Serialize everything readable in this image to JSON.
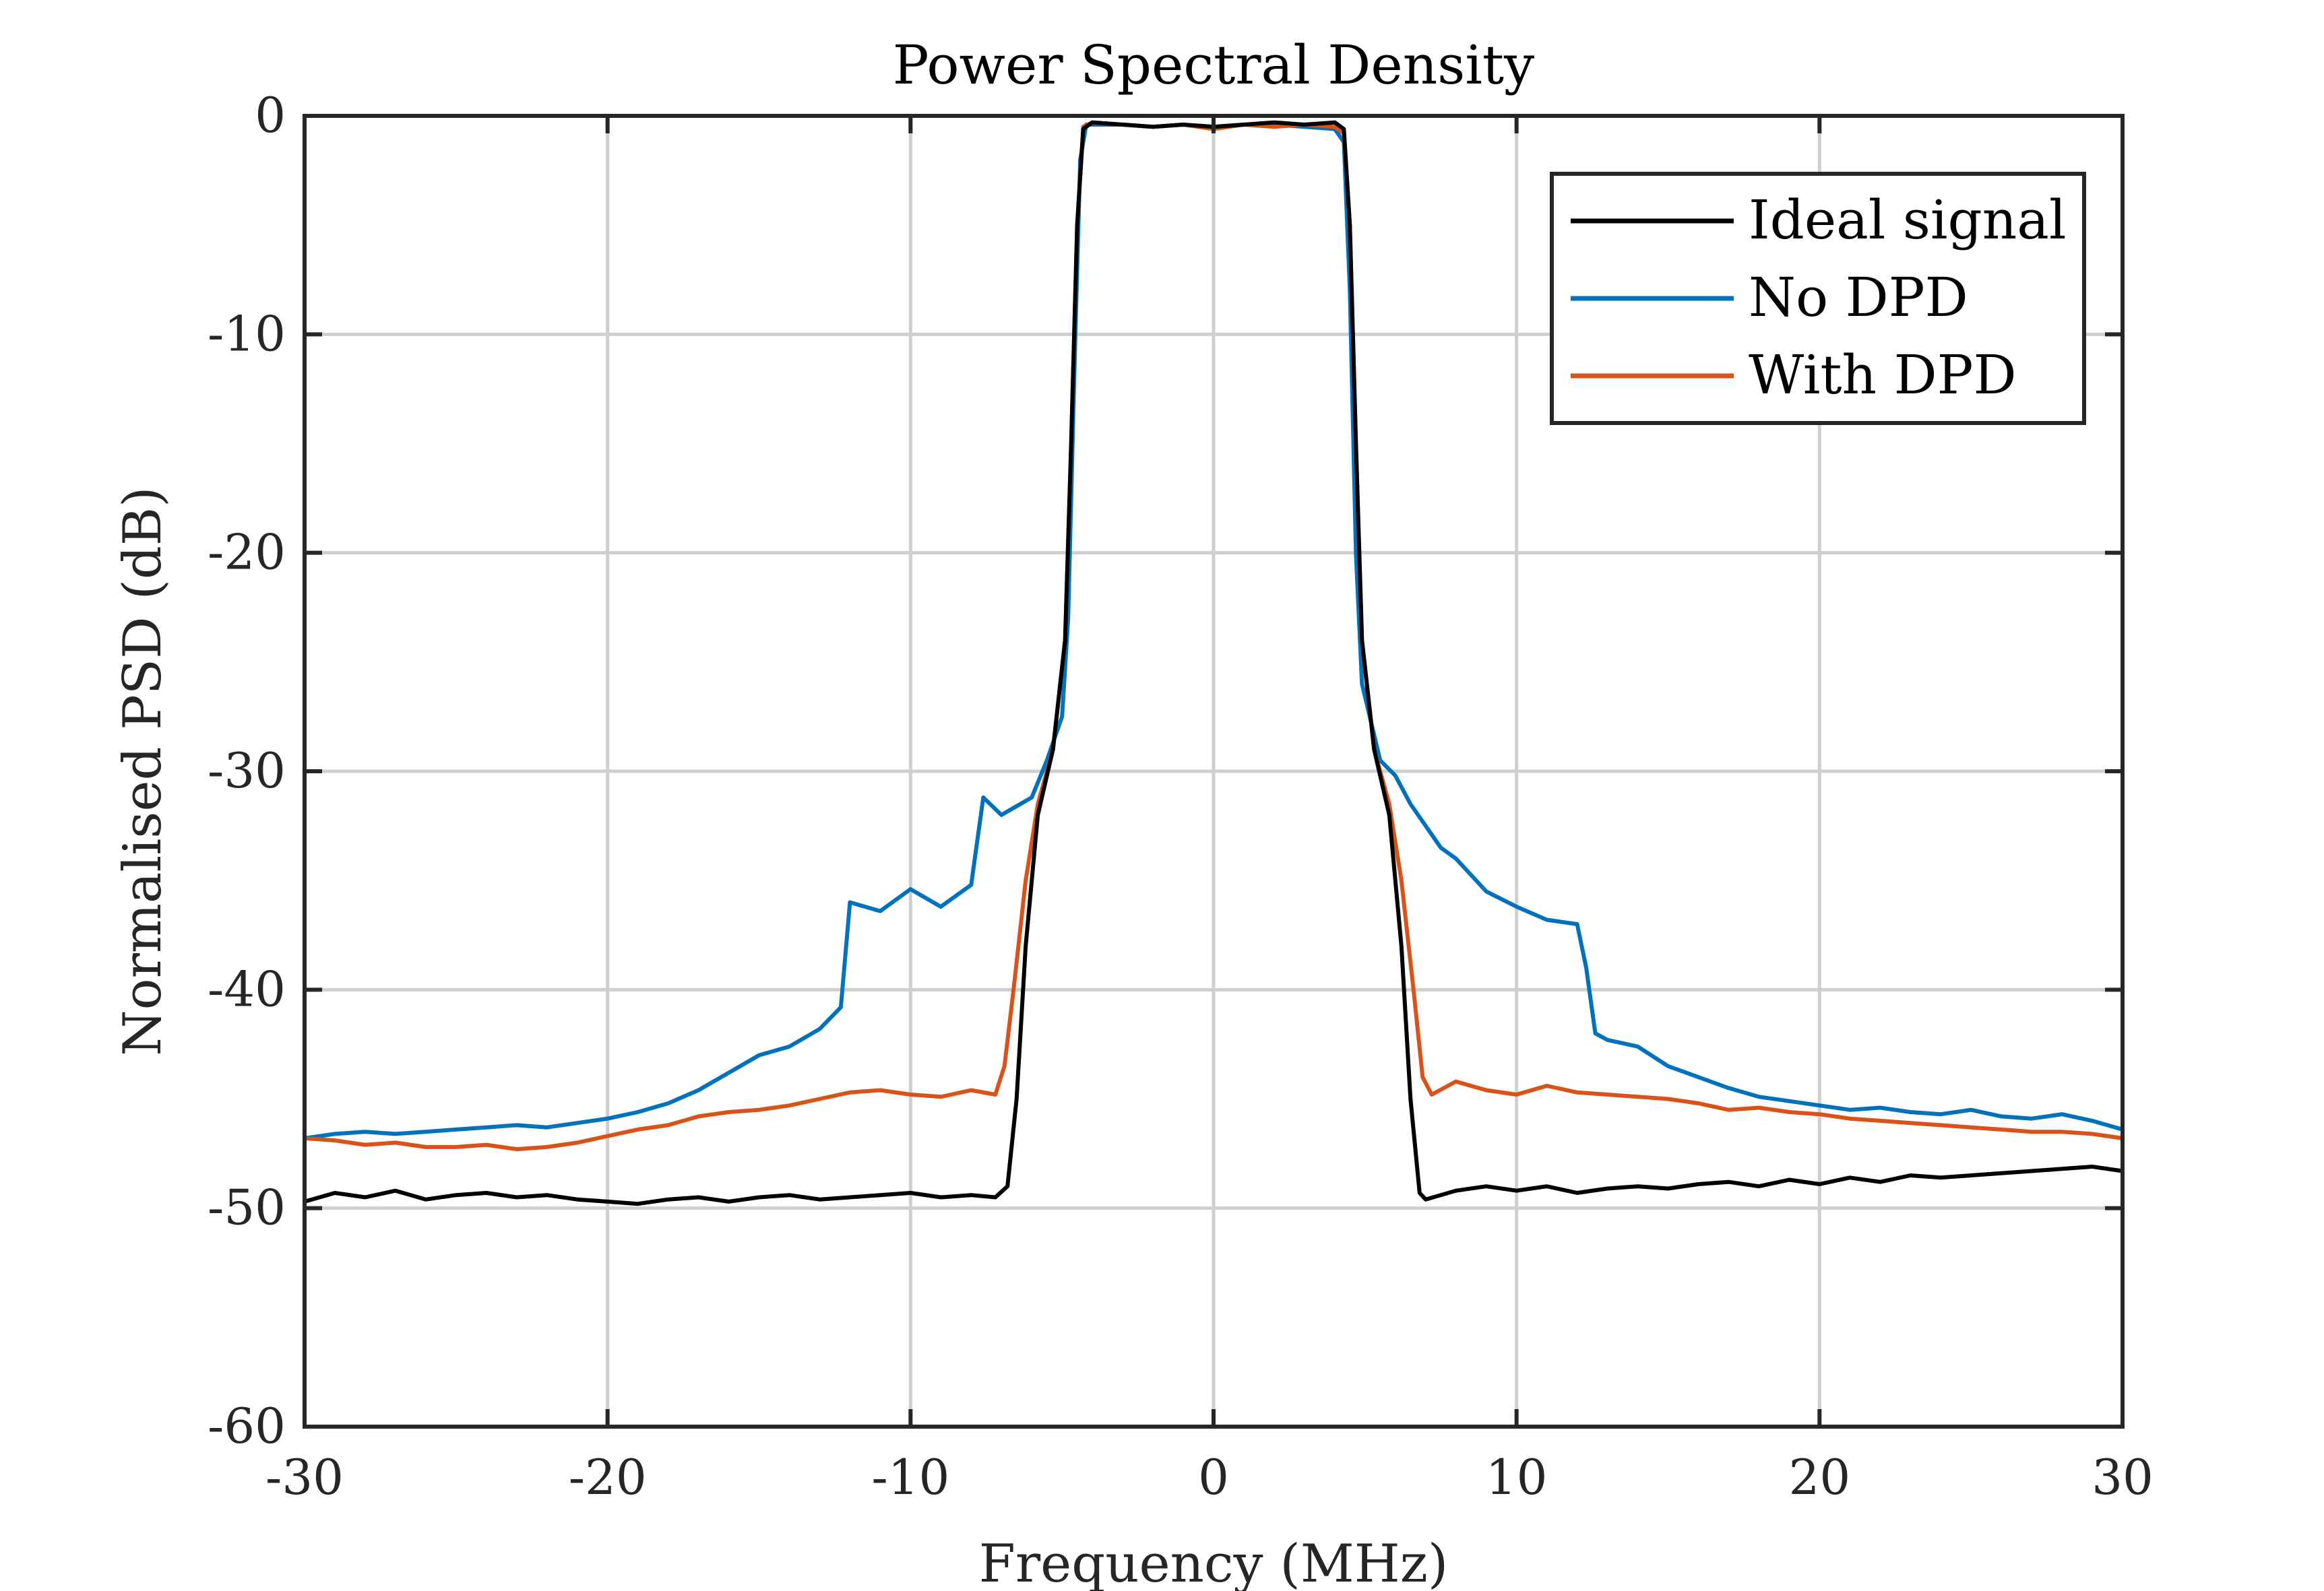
{
  "chart_data": {
    "type": "line",
    "title": "Power Spectral Density",
    "xlabel": "Frequency (MHz)",
    "ylabel": "Normalised PSD (dB)",
    "xlim": [
      -30,
      30
    ],
    "ylim": [
      -60,
      0
    ],
    "xticks": [
      -30,
      -20,
      -10,
      0,
      10,
      20,
      30
    ],
    "yticks": [
      0,
      -10,
      -20,
      -30,
      -40,
      -50,
      -60
    ],
    "grid": true,
    "legend_position": "top-right",
    "series": [
      {
        "name": "Ideal signal",
        "color": "#000000",
        "points": [
          [
            -30,
            -49.7
          ],
          [
            -29,
            -49.3
          ],
          [
            -28,
            -49.5
          ],
          [
            -27,
            -49.2
          ],
          [
            -26,
            -49.6
          ],
          [
            -25,
            -49.4
          ],
          [
            -24,
            -49.3
          ],
          [
            -23,
            -49.5
          ],
          [
            -22,
            -49.4
          ],
          [
            -21,
            -49.6
          ],
          [
            -20,
            -49.7
          ],
          [
            -19,
            -49.8
          ],
          [
            -18,
            -49.6
          ],
          [
            -17,
            -49.5
          ],
          [
            -16,
            -49.7
          ],
          [
            -15,
            -49.5
          ],
          [
            -14,
            -49.4
          ],
          [
            -13,
            -49.6
          ],
          [
            -12,
            -49.5
          ],
          [
            -11,
            -49.4
          ],
          [
            -10,
            -49.3
          ],
          [
            -9,
            -49.5
          ],
          [
            -8,
            -49.4
          ],
          [
            -7.2,
            -49.5
          ],
          [
            -6.8,
            -49.0
          ],
          [
            -6.5,
            -45
          ],
          [
            -6.2,
            -38
          ],
          [
            -5.8,
            -32
          ],
          [
            -5.3,
            -29
          ],
          [
            -4.9,
            -24
          ],
          [
            -4.7,
            -15
          ],
          [
            -4.5,
            -5
          ],
          [
            -4.3,
            -0.6
          ],
          [
            -4,
            -0.3
          ],
          [
            -3,
            -0.4
          ],
          [
            -2,
            -0.5
          ],
          [
            -1,
            -0.4
          ],
          [
            0,
            -0.5
          ],
          [
            1,
            -0.4
          ],
          [
            2,
            -0.3
          ],
          [
            3,
            -0.4
          ],
          [
            4,
            -0.3
          ],
          [
            4.3,
            -0.6
          ],
          [
            4.5,
            -5
          ],
          [
            4.7,
            -15
          ],
          [
            4.9,
            -24
          ],
          [
            5.3,
            -29
          ],
          [
            5.8,
            -32
          ],
          [
            6.2,
            -38
          ],
          [
            6.5,
            -45
          ],
          [
            6.8,
            -49.3
          ],
          [
            7,
            -49.6
          ],
          [
            8,
            -49.2
          ],
          [
            9,
            -49.0
          ],
          [
            10,
            -49.2
          ],
          [
            11,
            -49.0
          ],
          [
            12,
            -49.3
          ],
          [
            13,
            -49.1
          ],
          [
            14,
            -49.0
          ],
          [
            15,
            -49.1
          ],
          [
            16,
            -48.9
          ],
          [
            17,
            -48.8
          ],
          [
            18,
            -49.0
          ],
          [
            19,
            -48.7
          ],
          [
            20,
            -48.9
          ],
          [
            21,
            -48.6
          ],
          [
            22,
            -48.8
          ],
          [
            23,
            -48.5
          ],
          [
            24,
            -48.6
          ],
          [
            25,
            -48.5
          ],
          [
            26,
            -48.4
          ],
          [
            27,
            -48.3
          ],
          [
            28,
            -48.2
          ],
          [
            29,
            -48.1
          ],
          [
            30,
            -48.3
          ]
        ]
      },
      {
        "name": "No DPD",
        "color": "#0072BD",
        "points": [
          [
            -30,
            -46.8
          ],
          [
            -29,
            -46.6
          ],
          [
            -28,
            -46.5
          ],
          [
            -27,
            -46.6
          ],
          [
            -26,
            -46.5
          ],
          [
            -25,
            -46.4
          ],
          [
            -24,
            -46.3
          ],
          [
            -23,
            -46.2
          ],
          [
            -22,
            -46.3
          ],
          [
            -21,
            -46.1
          ],
          [
            -20,
            -45.9
          ],
          [
            -19,
            -45.6
          ],
          [
            -18,
            -45.2
          ],
          [
            -17,
            -44.6
          ],
          [
            -16,
            -43.8
          ],
          [
            -15,
            -43.0
          ],
          [
            -14,
            -42.6
          ],
          [
            -13,
            -41.8
          ],
          [
            -12.3,
            -40.8
          ],
          [
            -12,
            -36.0
          ],
          [
            -11,
            -36.4
          ],
          [
            -10,
            -35.4
          ],
          [
            -9,
            -36.2
          ],
          [
            -8,
            -35.2
          ],
          [
            -7.6,
            -31.2
          ],
          [
            -7,
            -32.0
          ],
          [
            -6,
            -31.2
          ],
          [
            -5.5,
            -29.5
          ],
          [
            -5,
            -27.5
          ],
          [
            -4.8,
            -23
          ],
          [
            -4.6,
            -12
          ],
          [
            -4.4,
            -2
          ],
          [
            -4.2,
            -0.4
          ],
          [
            -3,
            -0.4
          ],
          [
            -2,
            -0.5
          ],
          [
            -1,
            -0.4
          ],
          [
            0,
            -0.5
          ],
          [
            1,
            -0.4
          ],
          [
            2,
            -0.4
          ],
          [
            3,
            -0.5
          ],
          [
            4,
            -0.6
          ],
          [
            4.3,
            -1.2
          ],
          [
            4.5,
            -8
          ],
          [
            4.7,
            -20
          ],
          [
            4.9,
            -26
          ],
          [
            5.5,
            -29.5
          ],
          [
            6,
            -30.2
          ],
          [
            6.5,
            -31.5
          ],
          [
            7,
            -32.5
          ],
          [
            7.5,
            -33.5
          ],
          [
            8,
            -34.0
          ],
          [
            9,
            -35.5
          ],
          [
            10,
            -36.2
          ],
          [
            11,
            -36.8
          ],
          [
            12,
            -37.0
          ],
          [
            12.3,
            -39.0
          ],
          [
            12.6,
            -42.0
          ],
          [
            13,
            -42.3
          ],
          [
            14,
            -42.6
          ],
          [
            15,
            -43.5
          ],
          [
            16,
            -44.0
          ],
          [
            17,
            -44.5
          ],
          [
            18,
            -44.9
          ],
          [
            19,
            -45.1
          ],
          [
            20,
            -45.3
          ],
          [
            21,
            -45.5
          ],
          [
            22,
            -45.4
          ],
          [
            23,
            -45.6
          ],
          [
            24,
            -45.7
          ],
          [
            25,
            -45.5
          ],
          [
            26,
            -45.8
          ],
          [
            27,
            -45.9
          ],
          [
            28,
            -45.7
          ],
          [
            29,
            -46.0
          ],
          [
            30,
            -46.4
          ]
        ]
      },
      {
        "name": "With DPD",
        "color": "#D95319",
        "points": [
          [
            -30,
            -46.8
          ],
          [
            -29,
            -46.9
          ],
          [
            -28,
            -47.1
          ],
          [
            -27,
            -47.0
          ],
          [
            -26,
            -47.2
          ],
          [
            -25,
            -47.2
          ],
          [
            -24,
            -47.1
          ],
          [
            -23,
            -47.3
          ],
          [
            -22,
            -47.2
          ],
          [
            -21,
            -47.0
          ],
          [
            -20,
            -46.7
          ],
          [
            -19,
            -46.4
          ],
          [
            -18,
            -46.2
          ],
          [
            -17,
            -45.8
          ],
          [
            -16,
            -45.6
          ],
          [
            -15,
            -45.5
          ],
          [
            -14,
            -45.3
          ],
          [
            -13,
            -45.0
          ],
          [
            -12,
            -44.7
          ],
          [
            -11,
            -44.6
          ],
          [
            -10,
            -44.8
          ],
          [
            -9,
            -44.9
          ],
          [
            -8,
            -44.6
          ],
          [
            -7.2,
            -44.8
          ],
          [
            -6.9,
            -43.5
          ],
          [
            -6.6,
            -40
          ],
          [
            -6.2,
            -35
          ],
          [
            -5.8,
            -31.5
          ],
          [
            -5.3,
            -29
          ],
          [
            -4.9,
            -24
          ],
          [
            -4.7,
            -15
          ],
          [
            -4.5,
            -5
          ],
          [
            -4.3,
            -0.5
          ],
          [
            -4,
            -0.3
          ],
          [
            -3,
            -0.4
          ],
          [
            -2,
            -0.5
          ],
          [
            -1,
            -0.4
          ],
          [
            0,
            -0.6
          ],
          [
            1,
            -0.4
          ],
          [
            2,
            -0.5
          ],
          [
            3,
            -0.4
          ],
          [
            4,
            -0.5
          ],
          [
            4.3,
            -0.8
          ],
          [
            4.5,
            -5
          ],
          [
            4.7,
            -15
          ],
          [
            4.9,
            -24
          ],
          [
            5.3,
            -29
          ],
          [
            5.8,
            -31.5
          ],
          [
            6.2,
            -35
          ],
          [
            6.6,
            -40
          ],
          [
            6.9,
            -44
          ],
          [
            7.2,
            -44.8
          ],
          [
            8,
            -44.2
          ],
          [
            9,
            -44.6
          ],
          [
            10,
            -44.8
          ],
          [
            11,
            -44.4
          ],
          [
            12,
            -44.7
          ],
          [
            13,
            -44.8
          ],
          [
            14,
            -44.9
          ],
          [
            15,
            -45.0
          ],
          [
            16,
            -45.2
          ],
          [
            17,
            -45.5
          ],
          [
            18,
            -45.4
          ],
          [
            19,
            -45.6
          ],
          [
            20,
            -45.7
          ],
          [
            21,
            -45.9
          ],
          [
            22,
            -46.0
          ],
          [
            23,
            -46.1
          ],
          [
            24,
            -46.2
          ],
          [
            25,
            -46.3
          ],
          [
            26,
            -46.4
          ],
          [
            27,
            -46.5
          ],
          [
            28,
            -46.5
          ],
          [
            29,
            -46.6
          ],
          [
            30,
            -46.8
          ]
        ]
      }
    ]
  }
}
